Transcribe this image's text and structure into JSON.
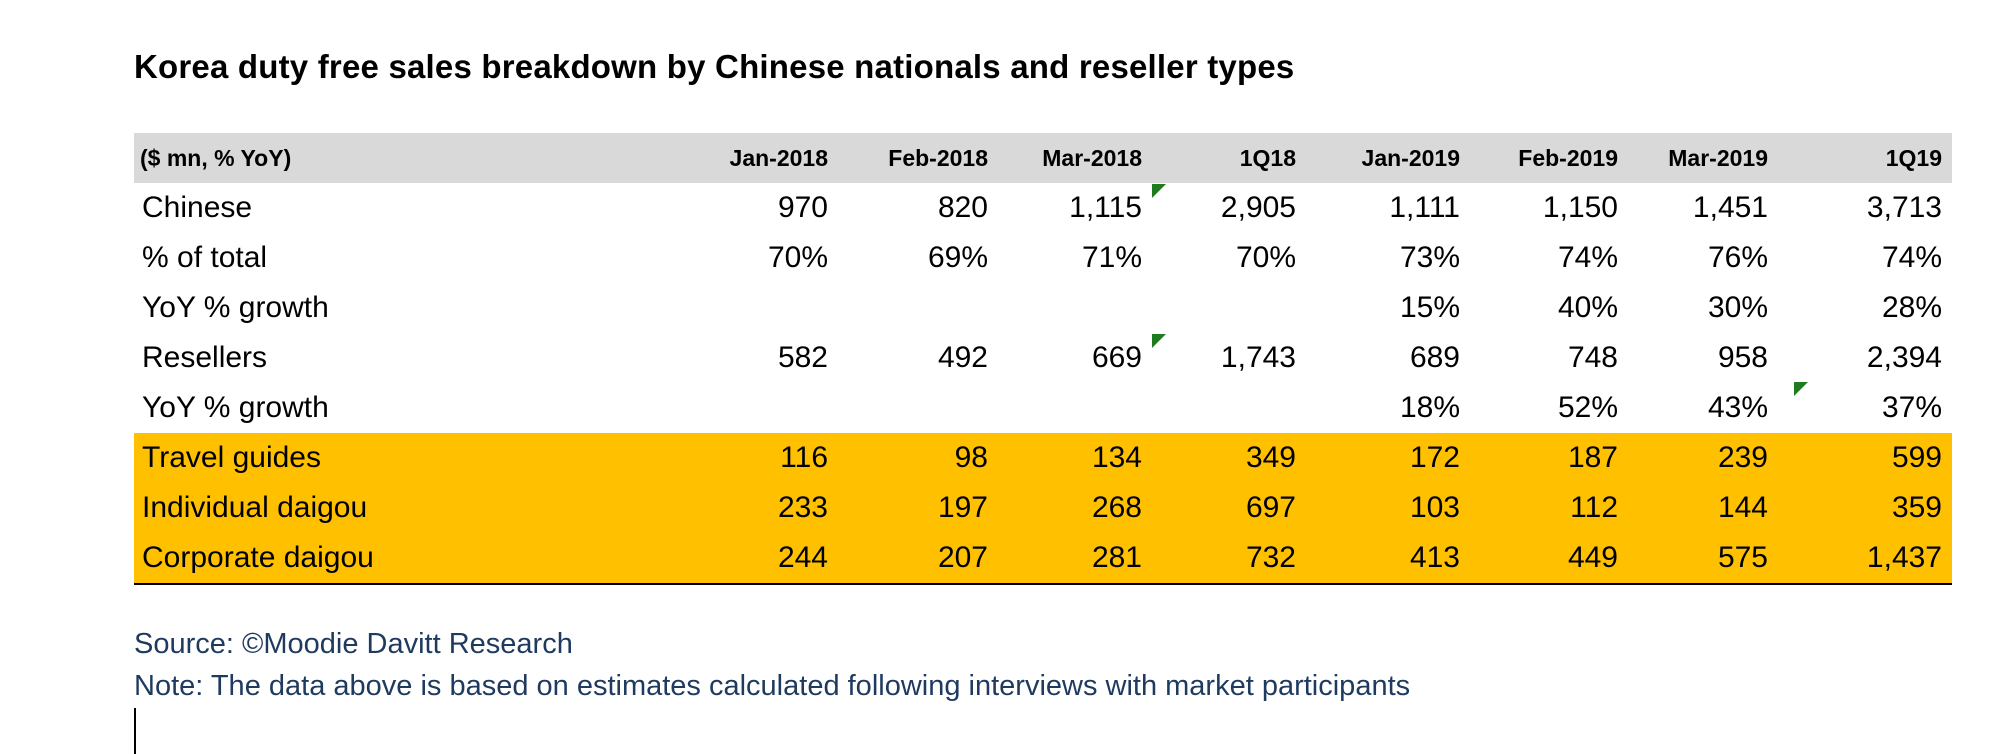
{
  "title": "Korea duty free sales breakdown by Chinese nationals and reseller types",
  "table": {
    "unit_label": "($ mn, % YoY)",
    "columns": [
      "Jan-2018",
      "Feb-2018",
      "Mar-2018",
      "1Q18",
      "Jan-2019",
      "Feb-2019",
      "Mar-2019",
      "1Q19"
    ],
    "rows": [
      {
        "label": "Chinese",
        "values": [
          "970",
          "820",
          "1,115",
          "2,905",
          "1,111",
          "1,150",
          "1,451",
          "3,713"
        ]
      },
      {
        "label": "% of total",
        "values": [
          "70%",
          "69%",
          "71%",
          "70%",
          "73%",
          "74%",
          "76%",
          "74%"
        ]
      },
      {
        "label": "YoY % growth",
        "values": [
          "",
          "",
          "",
          "",
          "15%",
          "40%",
          "30%",
          "28%"
        ]
      },
      {
        "label": "Resellers",
        "values": [
          "582",
          "492",
          "669",
          "1,743",
          "689",
          "748",
          "958",
          "2,394"
        ]
      },
      {
        "label": "YoY % growth",
        "values": [
          "",
          "",
          "",
          "",
          "18%",
          "52%",
          "43%",
          "37%"
        ]
      },
      {
        "label": "Travel guides",
        "values": [
          "116",
          "98",
          "134",
          "349",
          "172",
          "187",
          "239",
          "599"
        ]
      },
      {
        "label": "Individual daigou",
        "values": [
          "233",
          "197",
          "268",
          "697",
          "103",
          "112",
          "144",
          "359"
        ]
      },
      {
        "label": "Corporate daigou",
        "values": [
          "244",
          "207",
          "281",
          "732",
          "413",
          "449",
          "575",
          "1,437"
        ]
      }
    ],
    "highlight_color": "#ffc000",
    "header_color": "#d9d9d9"
  },
  "source": "Source: ©Moodie Davitt Research",
  "note": "Note: The data above is based on estimates calculated following interviews with market participants"
}
